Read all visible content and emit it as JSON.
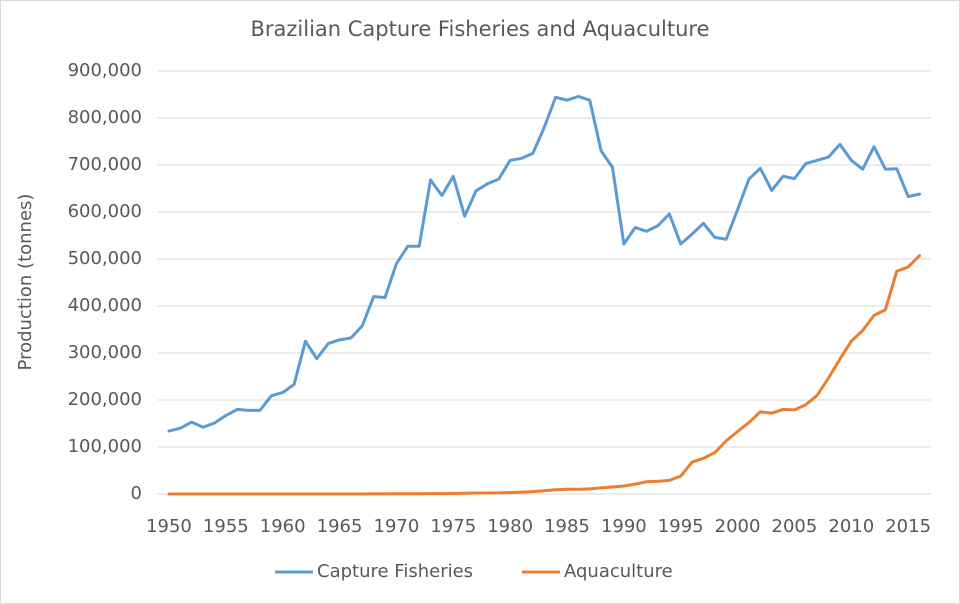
{
  "chart_data": {
    "type": "line",
    "title": "Brazilian Capture Fisheries and Aquaculture",
    "y_label": "Production (tonnes)",
    "x": [
      1950,
      1951,
      1952,
      1953,
      1954,
      1955,
      1956,
      1957,
      1958,
      1959,
      1960,
      1961,
      1962,
      1963,
      1964,
      1965,
      1966,
      1967,
      1968,
      1969,
      1970,
      1971,
      1972,
      1973,
      1974,
      1975,
      1976,
      1977,
      1978,
      1979,
      1980,
      1981,
      1982,
      1983,
      1984,
      1985,
      1986,
      1987,
      1988,
      1989,
      1990,
      1991,
      1992,
      1993,
      1994,
      1995,
      1996,
      1997,
      1998,
      1999,
      2000,
      2001,
      2002,
      2003,
      2004,
      2005,
      2006,
      2007,
      2008,
      2009,
      2010,
      2011,
      2012,
      2013,
      2014,
      2015,
      2016
    ],
    "series": [
      {
        "name": "Capture Fisheries",
        "color": "#5b9bd5",
        "values": [
          134000,
          140000,
          153000,
          142000,
          151000,
          167000,
          180000,
          178000,
          178000,
          209000,
          216000,
          233000,
          325000,
          288000,
          320000,
          328000,
          332000,
          358000,
          420000,
          418000,
          490000,
          527000,
          527000,
          668000,
          635000,
          676000,
          591000,
          645000,
          660000,
          670000,
          710000,
          714000,
          725000,
          780000,
          844000,
          838000,
          846000,
          838000,
          730000,
          695000,
          532000,
          567000,
          559000,
          571000,
          596000,
          532000,
          553000,
          576000,
          546000,
          542000,
          605000,
          670000,
          693000,
          646000,
          676000,
          671000,
          703000,
          710000,
          717000,
          744000,
          710000,
          691000,
          739000,
          691000,
          692000,
          633000,
          638000
        ]
      },
      {
        "name": "Aquaculture",
        "color": "#ed7d31",
        "values": [
          0,
          0,
          0,
          0,
          0,
          0,
          0,
          0,
          0,
          0,
          0,
          0,
          0,
          0,
          0,
          0,
          0,
          0,
          200,
          300,
          400,
          500,
          600,
          700,
          800,
          1000,
          1500,
          2000,
          2000,
          2500,
          3000,
          4000,
          5000,
          7000,
          9000,
          10000,
          10000,
          11000,
          13000,
          15000,
          17000,
          21000,
          26000,
          27000,
          29000,
          38000,
          68000,
          76000,
          88000,
          113000,
          133000,
          152000,
          175000,
          172000,
          180000,
          179000,
          190000,
          210000,
          247000,
          287000,
          325000,
          348000,
          380000,
          392000,
          474000,
          483000,
          507000
        ]
      }
    ],
    "xlim": [
      1949,
      2017
    ],
    "xticks": [
      1950,
      1955,
      1960,
      1965,
      1970,
      1975,
      1980,
      1985,
      1990,
      1995,
      2000,
      2005,
      2010,
      2015
    ],
    "ylim": [
      0,
      900000
    ],
    "yticks": [
      0,
      {
        "value": 100000,
        "label": "100,000"
      },
      {
        "value": 200000,
        "label": "200,000"
      },
      {
        "value": 300000,
        "label": "300,000"
      },
      {
        "value": 400000,
        "label": "400,000"
      },
      {
        "value": 500000,
        "label": "500,000"
      },
      {
        "value": 600000,
        "label": "600,000"
      },
      {
        "value": 700000,
        "label": "700,000"
      },
      {
        "value": 800000,
        "label": "800,000"
      },
      {
        "value": 900000,
        "label": "900,000"
      }
    ],
    "grid": true,
    "legend": "bottom"
  }
}
